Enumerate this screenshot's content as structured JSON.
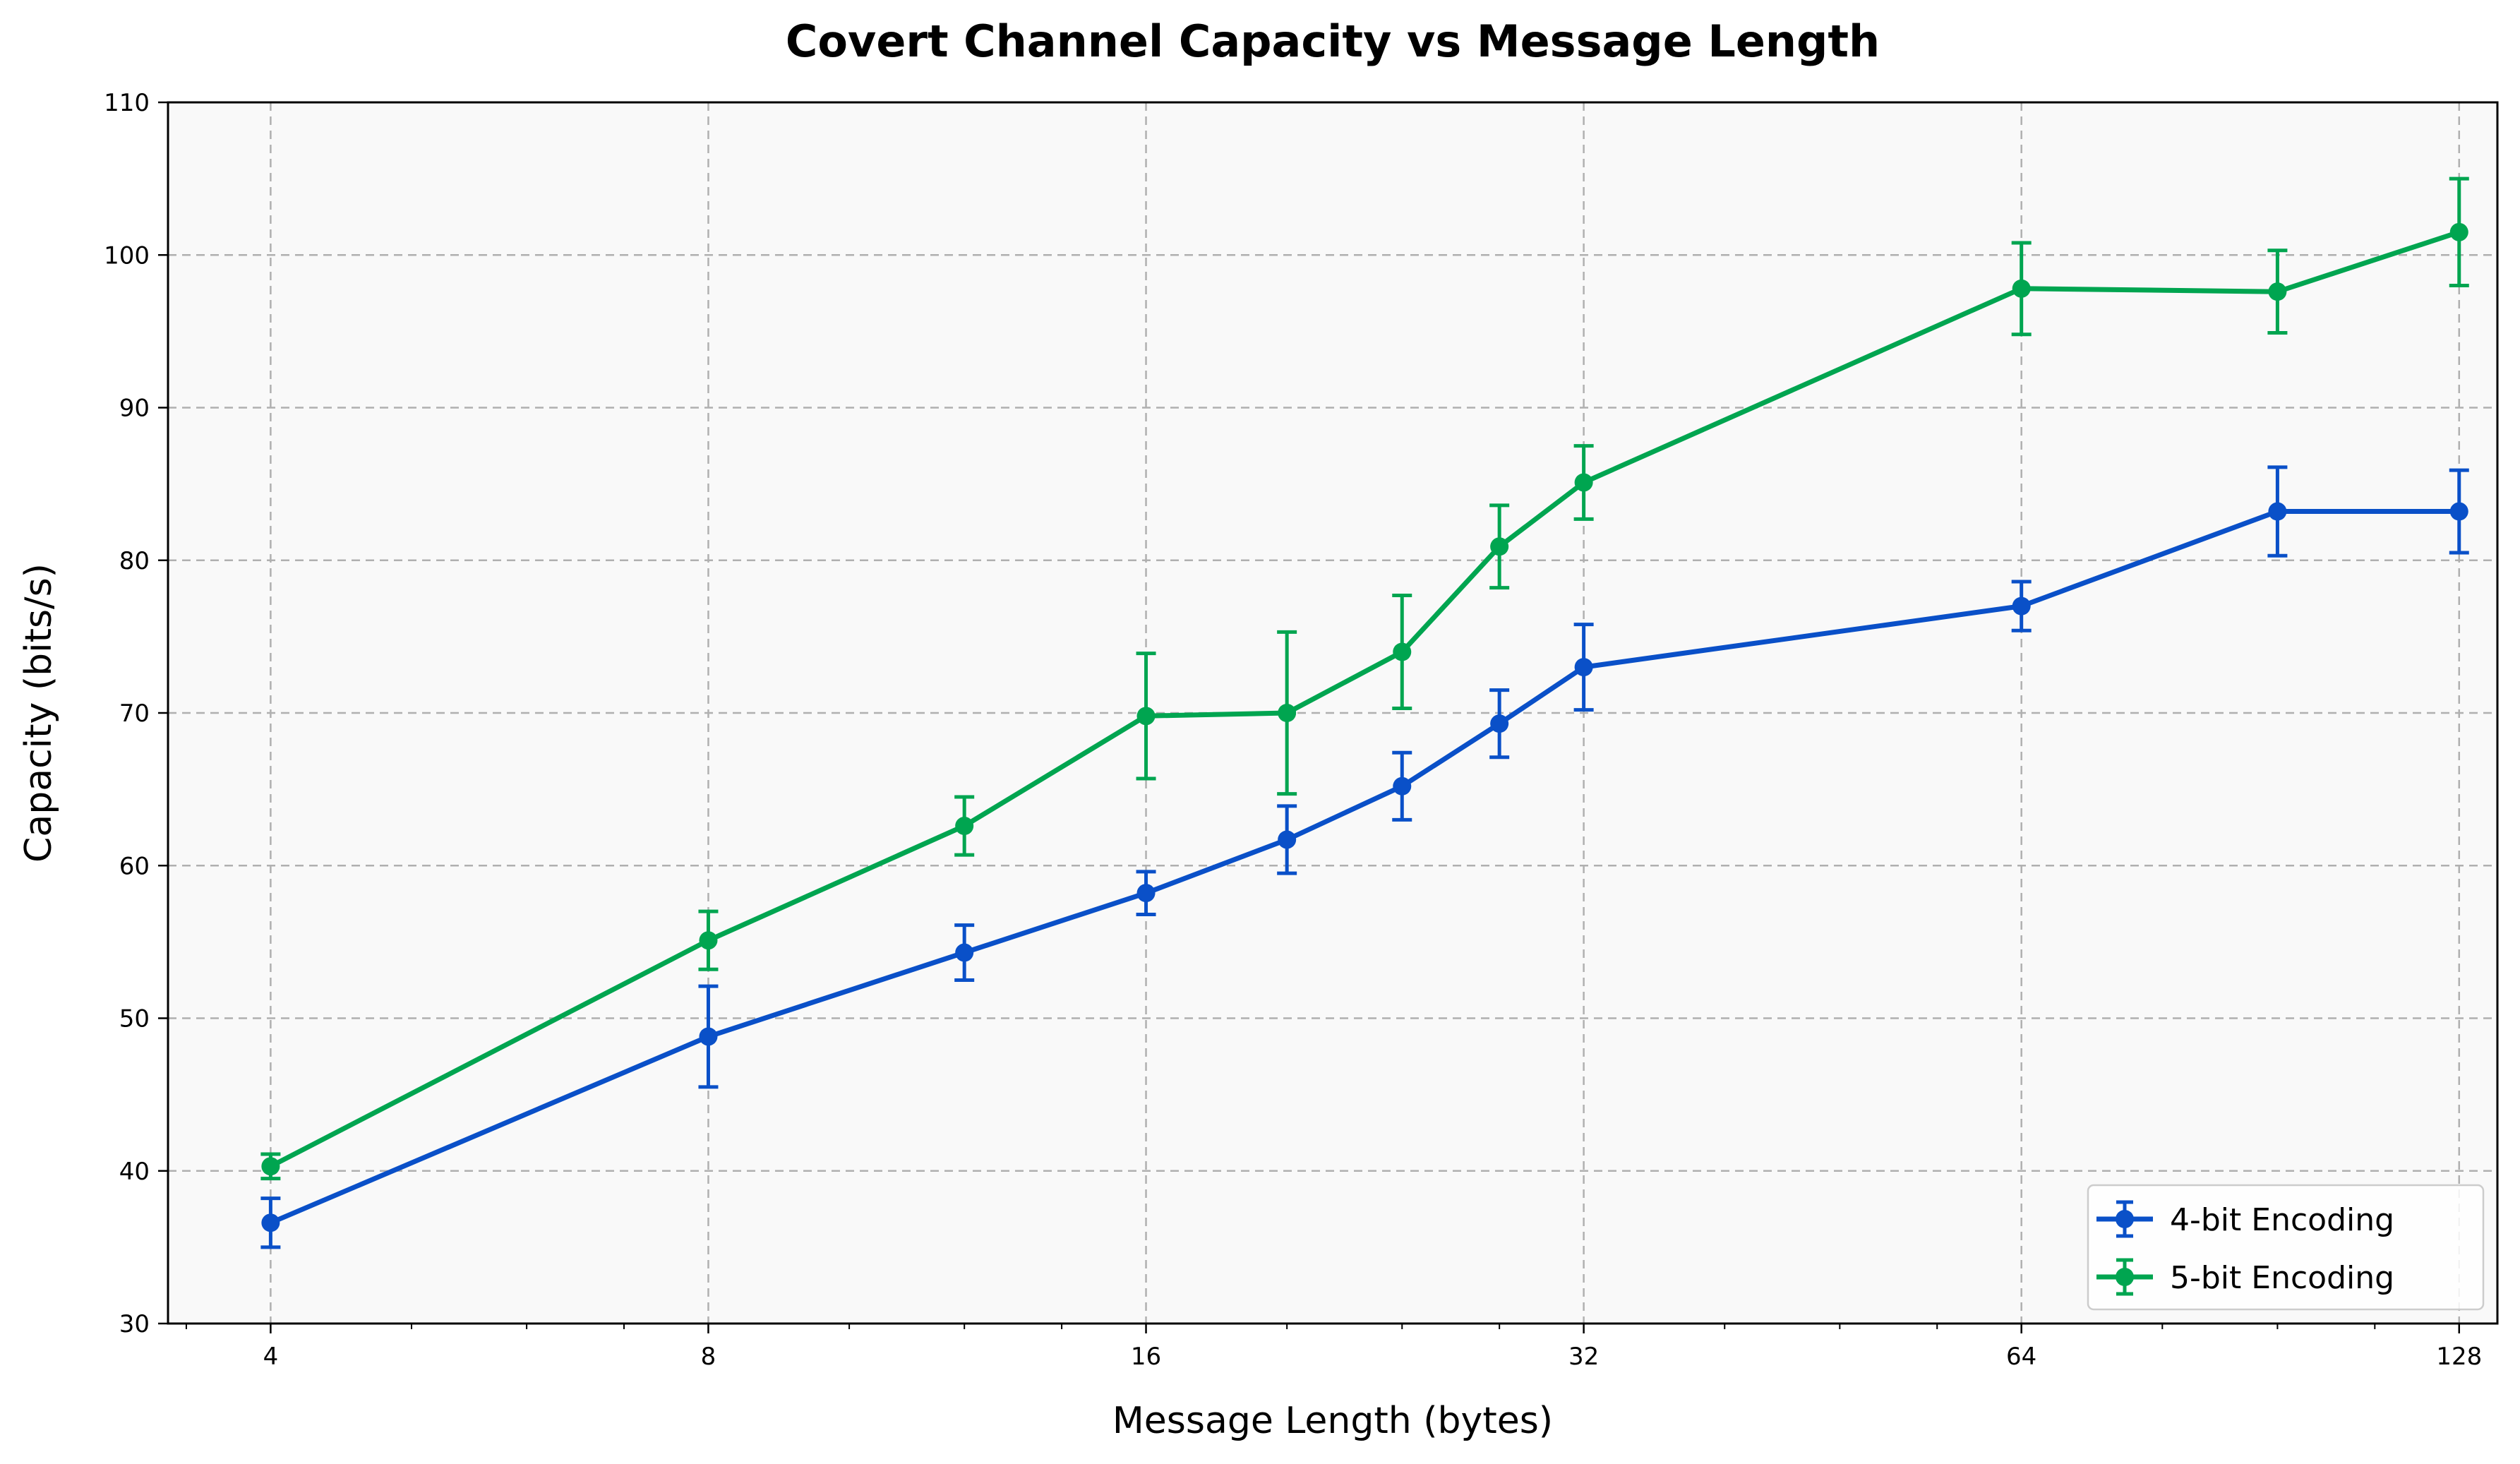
{
  "chart_data": {
    "type": "line",
    "title": "Covert Channel Capacity vs Message Length",
    "xlabel": "Message Length (bytes)",
    "ylabel": "Capacity (bits/s)",
    "xscale": "log2",
    "xlim": [
      3.4,
      136
    ],
    "ylim": [
      30,
      110
    ],
    "xticks": [
      4,
      8,
      16,
      32,
      64,
      128
    ],
    "xtick_labels": [
      "4",
      "8",
      "16",
      "32",
      "64",
      "128"
    ],
    "yticks": [
      30,
      40,
      50,
      60,
      70,
      80,
      90,
      100,
      110
    ],
    "ytick_labels": [
      "30",
      "40",
      "50",
      "60",
      "70",
      "80",
      "90",
      "100",
      "110"
    ],
    "grid": true,
    "legend_position": "lower-right",
    "x": [
      4,
      8,
      12,
      16,
      20,
      24,
      28,
      32,
      64,
      96,
      128
    ],
    "series": [
      {
        "name": "4-bit Encoding",
        "color": "#0a50c8",
        "values": [
          36.6,
          48.8,
          54.3,
          58.2,
          61.7,
          65.2,
          69.3,
          73.0,
          77.0,
          83.2,
          83.2
        ],
        "errors": [
          1.6,
          3.3,
          1.8,
          1.4,
          2.2,
          2.2,
          2.2,
          2.8,
          1.6,
          2.9,
          2.7
        ]
      },
      {
        "name": "5-bit Encoding",
        "color": "#00a550",
        "values": [
          40.3,
          55.1,
          62.6,
          69.8,
          70.0,
          74.0,
          80.9,
          85.1,
          97.8,
          97.6,
          101.5
        ],
        "errors": [
          0.8,
          1.9,
          1.9,
          4.1,
          5.3,
          3.7,
          2.7,
          2.4,
          3.0,
          2.7,
          3.5
        ]
      }
    ]
  }
}
